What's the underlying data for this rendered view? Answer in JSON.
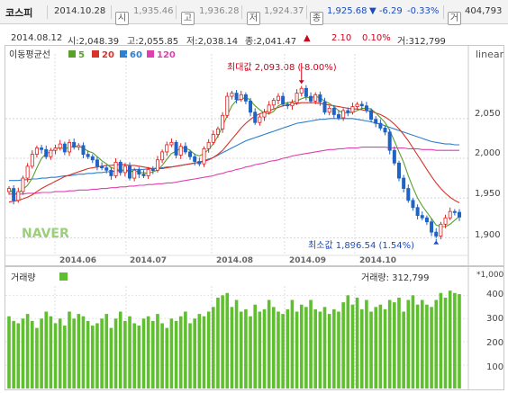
{
  "header": {
    "index_name": "코스피",
    "date": "2014.10.28",
    "open_tag": "시",
    "open_value": "1,935.46",
    "high_tag": "고",
    "high_value": "1,936.28",
    "low_tag": "저",
    "low_value": "1,924.37",
    "close_tag": "종",
    "close_value": "1,925.68",
    "change": "▼ -6.29",
    "change_pct": "-0.33%",
    "volume_tag": "거",
    "volume_value": "404,793"
  },
  "infobar": {
    "date": "2014.08.12",
    "open": "시:2,048.39",
    "high": "고:2,055.85",
    "low": "저:2,038.14",
    "close": "종:2,041.47",
    "arrow": "▲",
    "change": "2.10",
    "change_pct": "0.10%",
    "volume": "거:312,799"
  },
  "legend": {
    "title": "이동평균선",
    "items": [
      {
        "label": "5",
        "color": "#5aa02c"
      },
      {
        "label": "20",
        "color": "#d9322a"
      },
      {
        "label": "60",
        "color": "#2f7fd0"
      },
      {
        "label": "120",
        "color": "#e03fb0"
      }
    ]
  },
  "scale_label": "linear",
  "watermark": "NAVER",
  "annotations": {
    "max_label": "최대값 2,093.08 (-8.00%)",
    "min_label": "최소값 1,896.54 (1.54%)"
  },
  "volume_panel": {
    "title": "거래량",
    "right_label": "거래량: 312,799",
    "unit": "*1,000"
  },
  "colors": {
    "candle_up": "#e02020",
    "candle_down": "#1f63c4",
    "volume_bar": "#5fbf2f",
    "ma5": "#5aa02c",
    "ma20": "#d9322a",
    "ma60": "#2f7fd0",
    "ma120": "#e03fb0"
  },
  "chart_data": [
    {
      "type": "candlestick",
      "title": "코스피",
      "x_tick_labels": [
        "2014.06",
        "2014.07",
        "2014.08",
        "2014.09",
        "2014.10"
      ],
      "y_tick_labels": [
        "2,050",
        "2,000",
        "1,950",
        "1,900"
      ],
      "ylim": [
        1880,
        2120
      ],
      "grid": true,
      "close": [
        1962,
        1947,
        1958,
        1975,
        1990,
        2005,
        2013,
        2011,
        2002,
        2010,
        2013,
        2018,
        2008,
        2020,
        2014,
        2016,
        2005,
        2002,
        1998,
        1990,
        1988,
        1985,
        1978,
        1995,
        1982,
        1990,
        1975,
        1985,
        1980,
        1978,
        1986,
        1985,
        1998,
        2008,
        2017,
        2020,
        2004,
        2015,
        2008,
        2002,
        1996,
        1993,
        2012,
        2020,
        2030,
        2037,
        2054,
        2078,
        2082,
        2074,
        2080,
        2072,
        2058,
        2045,
        2052,
        2058,
        2067,
        2073,
        2078,
        2068,
        2066,
        2070,
        2082,
        2088,
        2078,
        2072,
        2080,
        2071,
        2058,
        2063,
        2055,
        2051,
        2060,
        2058,
        2065,
        2068,
        2066,
        2060,
        2049,
        2044,
        2038,
        2033,
        2010,
        1994,
        1975,
        1962,
        1947,
        1938,
        1928,
        1925,
        1920,
        1907,
        1902,
        1917,
        1925,
        1933,
        1932,
        1926
      ],
      "volume_thousands": [
        310,
        290,
        280,
        300,
        320,
        290,
        260,
        300,
        330,
        310,
        280,
        300,
        270,
        330,
        300,
        320,
        310,
        290,
        270,
        280,
        300,
        320,
        260,
        300,
        330,
        290,
        310,
        280,
        270,
        300,
        310,
        290,
        320,
        280,
        260,
        300,
        290,
        310,
        330,
        280,
        300,
        320,
        310,
        330,
        350,
        390,
        400,
        410,
        350,
        380,
        330,
        340,
        310,
        360,
        330,
        340,
        380,
        350,
        330,
        320,
        340,
        380,
        330,
        360,
        350,
        380,
        340,
        330,
        350,
        320,
        340,
        330,
        370,
        400,
        360,
        390,
        340,
        380,
        330,
        350,
        360,
        340,
        380,
        370,
        390,
        330,
        380,
        400,
        360,
        380,
        360,
        350,
        380,
        410,
        390,
        420,
        410,
        405
      ],
      "ma5": [
        1962,
        1955,
        1956,
        1961,
        1966,
        1975,
        1988,
        2000,
        2006,
        2008,
        2012,
        2013,
        2012,
        2014,
        2015,
        2015,
        2013,
        2009,
        2007,
        2002,
        1997,
        1993,
        1988,
        1987,
        1984,
        1986,
        1982,
        1985,
        1982,
        1982,
        1981,
        1983,
        1985,
        1991,
        1999,
        2006,
        2009,
        2013,
        2013,
        2010,
        2005,
        2003,
        2006,
        2011,
        2018,
        2028,
        2040,
        2054,
        2066,
        2073,
        2074,
        2077,
        2073,
        2066,
        2061,
        2057,
        2056,
        2059,
        2066,
        2069,
        2070,
        2071,
        2072,
        2075,
        2077,
        2076,
        2078,
        2076,
        2072,
        2069,
        2065,
        2060,
        2057,
        2057,
        2058,
        2060,
        2063,
        2063,
        2062,
        2057,
        2051,
        2045,
        2035,
        2022,
        2008,
        1995,
        1978,
        1963,
        1950,
        1940,
        1932,
        1924,
        1916,
        1914,
        1914,
        1917,
        1922,
        1927
      ],
      "ma20": [
        1945,
        1946,
        1947,
        1949,
        1951,
        1954,
        1958,
        1962,
        1965,
        1968,
        1971,
        1974,
        1977,
        1979,
        1981,
        1983,
        1985,
        1987,
        1988,
        1989,
        1990,
        1991,
        1991,
        1992,
        1992,
        1992,
        1991,
        1991,
        1990,
        1989,
        1988,
        1987,
        1987,
        1987,
        1988,
        1989,
        1990,
        1991,
        1992,
        1993,
        1994,
        1995,
        1996,
        1998,
        2001,
        2005,
        2010,
        2017,
        2024,
        2031,
        2038,
        2044,
        2049,
        2053,
        2056,
        2058,
        2060,
        2062,
        2064,
        2066,
        2067,
        2068,
        2069,
        2070,
        2070,
        2070,
        2070,
        2069,
        2068,
        2067,
        2066,
        2065,
        2064,
        2063,
        2062,
        2062,
        2061,
        2060,
        2059,
        2057,
        2055,
        2052,
        2048,
        2043,
        2037,
        2030,
        2022,
        2013,
        2004,
        1995,
        1986,
        1977,
        1969,
        1962,
        1956,
        1951,
        1947,
        1944
      ],
      "ma60": [
        1972,
        1972,
        1972,
        1973,
        1973,
        1974,
        1974,
        1975,
        1975,
        1976,
        1976,
        1977,
        1978,
        1978,
        1979,
        1980,
        1980,
        1981,
        1981,
        1982,
        1982,
        1983,
        1983,
        1984,
        1984,
        1985,
        1985,
        1986,
        1986,
        1986,
        1987,
        1987,
        1988,
        1988,
        1989,
        1989,
        1990,
        1991,
        1992,
        1993,
        1994,
        1995,
        1997,
        1999,
        2001,
        2004,
        2007,
        2010,
        2013,
        2016,
        2019,
        2022,
        2024,
        2026,
        2028,
        2030,
        2032,
        2034,
        2036,
        2038,
        2040,
        2042,
        2044,
        2045,
        2046,
        2047,
        2048,
        2049,
        2049,
        2050,
        2050,
        2050,
        2050,
        2050,
        2050,
        2049,
        2048,
        2047,
        2046,
        2044,
        2043,
        2041,
        2039,
        2037,
        2035,
        2033,
        2031,
        2029,
        2027,
        2025,
        2023,
        2021,
        2020,
        2019,
        2018,
        2018,
        2017,
        2017
      ],
      "ma120": [
        1955,
        1955,
        1955,
        1955,
        1956,
        1956,
        1956,
        1957,
        1957,
        1957,
        1958,
        1958,
        1958,
        1959,
        1959,
        1960,
        1960,
        1960,
        1961,
        1961,
        1962,
        1962,
        1963,
        1963,
        1964,
        1964,
        1965,
        1965,
        1966,
        1966,
        1967,
        1967,
        1968,
        1968,
        1969,
        1969,
        1970,
        1971,
        1972,
        1973,
        1974,
        1975,
        1976,
        1977,
        1978,
        1980,
        1981,
        1983,
        1984,
        1986,
        1987,
        1989,
        1990,
        1992,
        1993,
        1994,
        1996,
        1997,
        1998,
        2000,
        2001,
        2003,
        2004,
        2005,
        2006,
        2007,
        2008,
        2009,
        2010,
        2011,
        2011,
        2012,
        2012,
        2013,
        2013,
        2013,
        2014,
        2014,
        2014,
        2014,
        2014,
        2014,
        2013,
        2013,
        2013,
        2013,
        2012,
        2012,
        2012,
        2011,
        2011,
        2011,
        2010,
        2010,
        2010,
        2010,
        2010,
        2010
      ]
    },
    {
      "type": "bar",
      "title": "거래량",
      "y_tick_labels": [
        "400",
        "300",
        "200",
        "100"
      ],
      "ylim": [
        0,
        440
      ]
    }
  ]
}
